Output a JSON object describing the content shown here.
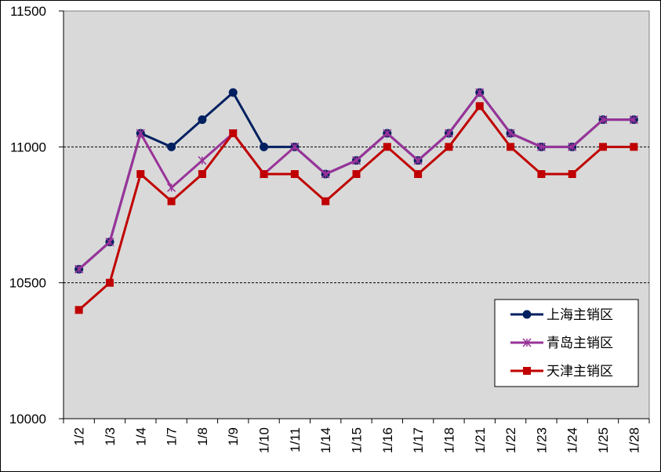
{
  "chart_data": {
    "type": "line",
    "title": "",
    "xlabel": "",
    "ylabel": "",
    "ylim": [
      10000,
      11500
    ],
    "yticks": [
      10000,
      10500,
      11000,
      11500
    ],
    "y_tick_labels": [
      "10000",
      "10500",
      "11000",
      "11500"
    ],
    "grid": "horizontal dashed at 10500 and 11000",
    "legend_position": "bottom-right",
    "plot_background": "#d9d9d9",
    "categories": [
      "1/2",
      "1/3",
      "1/4",
      "1/7",
      "1/8",
      "1/9",
      "1/10",
      "1/11",
      "1/14",
      "1/15",
      "1/16",
      "1/17",
      "1/18",
      "1/21",
      "1/22",
      "1/23",
      "1/24",
      "1/25",
      "1/28"
    ],
    "series": [
      {
        "name": "上海主销区",
        "color": "#002060",
        "marker": "circle",
        "values": [
          10550,
          10650,
          11050,
          11000,
          11100,
          11200,
          11000,
          11000,
          10900,
          10950,
          11050,
          10950,
          11050,
          11200,
          11050,
          11000,
          11000,
          11100,
          11100
        ]
      },
      {
        "name": "青岛主销区",
        "color": "#993399",
        "marker": "asterisk",
        "values": [
          10550,
          10650,
          11050,
          10850,
          10950,
          11050,
          10900,
          11000,
          10900,
          10950,
          11050,
          10950,
          11050,
          11200,
          11050,
          11000,
          11000,
          11100,
          11100
        ]
      },
      {
        "name": "天津主销区",
        "color": "#c00000",
        "marker": "square",
        "values": [
          10400,
          10500,
          10900,
          10800,
          10900,
          11050,
          10900,
          10900,
          10800,
          10900,
          11000,
          10900,
          11000,
          11150,
          11000,
          10900,
          10900,
          11000,
          11000
        ]
      }
    ]
  }
}
